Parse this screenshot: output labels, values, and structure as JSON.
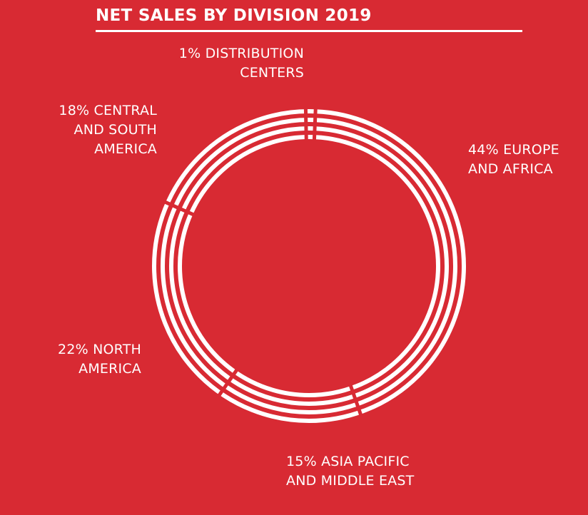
{
  "chart_data": {
    "type": "pie",
    "title": "NET SALES BY DIVISION 2019",
    "slices": [
      {
        "label": "1% DISTRIBUTION\nCENTERS",
        "value": 1
      },
      {
        "label": "44% EUROPE\nAND AFRICA",
        "value": 44
      },
      {
        "label": "15% ASIA PACIFIC\nAND MIDDLE EAST",
        "value": 15
      },
      {
        "label": "22% NORTH\nAMERICA",
        "value": 22
      },
      {
        "label": "18% CENTRAL\nAND SOUTH\nAMERICA",
        "value": 18
      }
    ],
    "colors": {
      "background": "#d82a33",
      "ring": "#ffffff"
    }
  }
}
